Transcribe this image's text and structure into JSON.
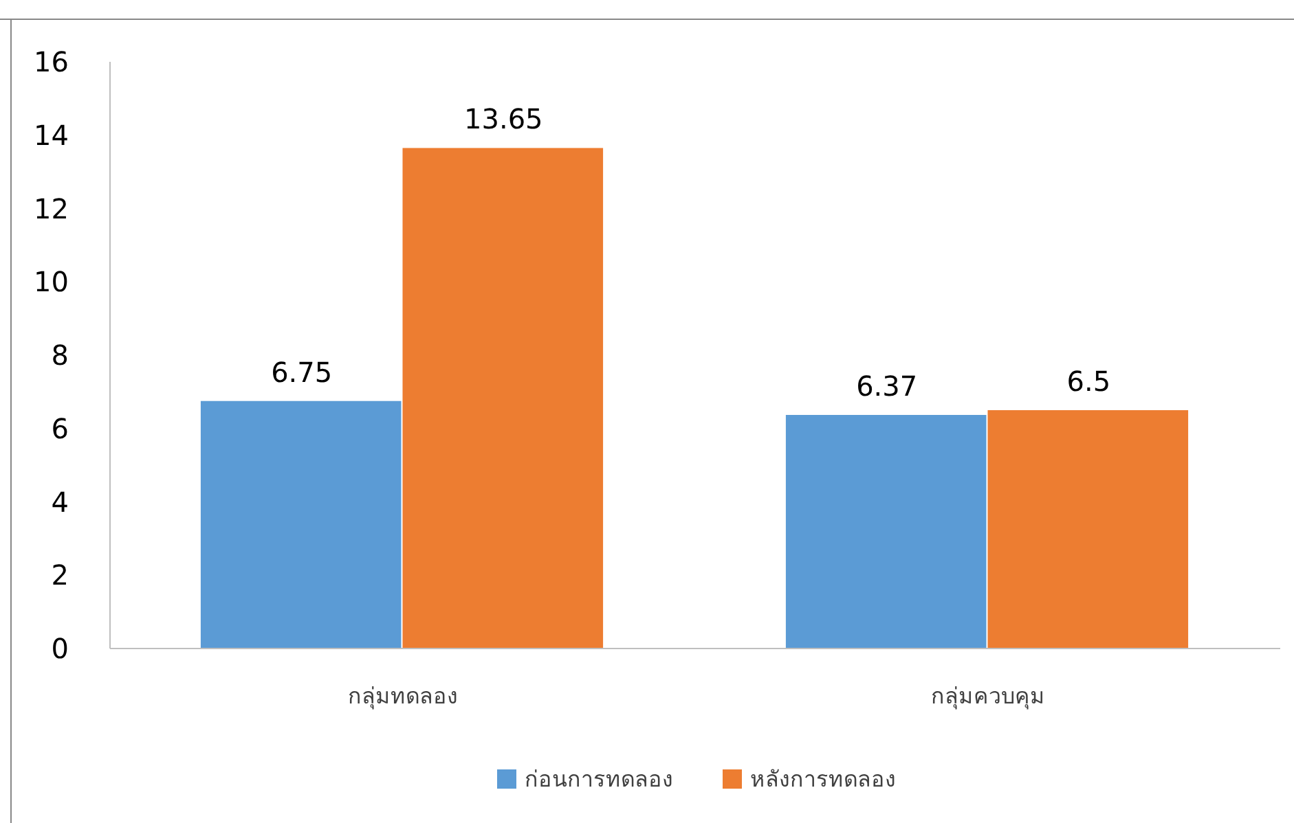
{
  "chart_data": {
    "type": "bar",
    "categories": [
      "กลุ่มทดลอง",
      "กลุ่มควบคุม"
    ],
    "series": [
      {
        "name": "ก่อนการทดลอง",
        "color": "#5b9bd5",
        "values": [
          6.75,
          6.37
        ]
      },
      {
        "name": "หลังการทดลอง",
        "color": "#ed7d31",
        "values": [
          13.65,
          6.5
        ]
      }
    ],
    "ylim": [
      0,
      16
    ],
    "yticks": [
      0,
      2,
      4,
      6,
      8,
      10,
      12,
      14,
      16
    ],
    "data_labels": true,
    "legend": "bottom",
    "grid": false
  }
}
